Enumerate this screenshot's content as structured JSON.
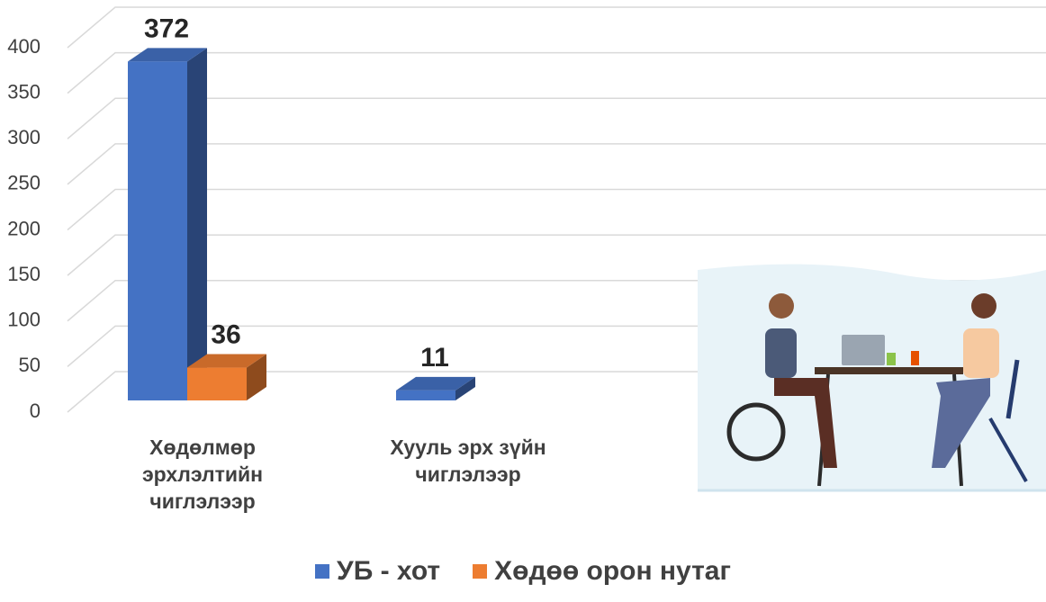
{
  "chart_data": {
    "type": "bar3d",
    "categories": [
      "Хөдөлмөр эрхлэлтийн чиглэлээр",
      "Хууль эрх зүйн чиглэлээр"
    ],
    "series": [
      {
        "name": "УБ - хот",
        "color": "#4472c4",
        "values": [
          372,
          11
        ]
      },
      {
        "name": "Хөдөө орон нутаг",
        "color": "#ed7d31",
        "values": [
          36,
          null
        ]
      }
    ],
    "ylim": [
      0,
      400
    ],
    "yticks": [
      0,
      50,
      100,
      150,
      200,
      250,
      300,
      350,
      400
    ],
    "grid": true,
    "legend": "bottom"
  }
}
